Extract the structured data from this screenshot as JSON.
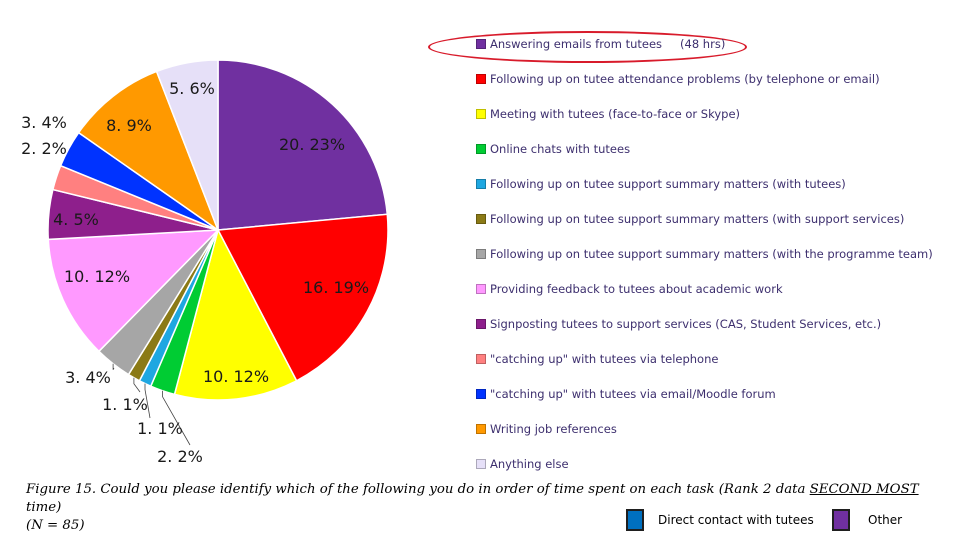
{
  "chart_data": {
    "type": "pie",
    "slices": [
      {
        "label": "Answering emails from tutees",
        "count": 20,
        "percent": 23,
        "data_label": "20. 23%",
        "color": "#7030a0"
      },
      {
        "label": "Following up on tutee attendance problems (by telephone or email)",
        "count": 16,
        "percent": 19,
        "data_label": "16. 19%",
        "color": "#ff0000"
      },
      {
        "label": "Meeting with tutees (face-to-face or Skype)",
        "count": 10,
        "percent": 12,
        "data_label": "10. 12%",
        "color": "#ffff00"
      },
      {
        "label": "Online chats with tutees",
        "count": 2,
        "percent": 2,
        "data_label": "2. 2%",
        "color": "#00cc33"
      },
      {
        "label": "Following up on tutee support summary matters (with tutees)",
        "count": 1,
        "percent": 1,
        "data_label": "1. 1%",
        "color": "#1ea7e1"
      },
      {
        "label": "Following up on tutee support summary matters (with support services)",
        "count": 1,
        "percent": 1,
        "data_label": "1. 1%",
        "color": "#8b7a16"
      },
      {
        "label": "Following up on tutee support summary matters (with the programme team)",
        "count": 3,
        "percent": 4,
        "data_label": "3. 4%",
        "color": "#a6a6a6"
      },
      {
        "label": "Providing feedback to tutees about academic work",
        "count": 10,
        "percent": 12,
        "data_label": "10. 12%",
        "color": "#ff99ff"
      },
      {
        "label": "Signposting tutees to support services (CAS, Student Services, etc.)",
        "count": 4,
        "percent": 5,
        "data_label": "4. 5%",
        "color": "#8e1f8c"
      },
      {
        "label": "\"catching up\" with tutees via telephone",
        "count": 2,
        "percent": 2,
        "data_label": "2. 2%",
        "color": "#ff8080"
      },
      {
        "label": "\"catching up\" with tutees via email/Moodle forum",
        "count": 3,
        "percent": 4,
        "data_label": "3. 4%",
        "color": "#0033ff"
      },
      {
        "label": "Writing job references",
        "count": 8,
        "percent": 9,
        "data_label": "8. 9%",
        "color": "#ff9900"
      },
      {
        "label": "Anything else",
        "count": 5,
        "percent": 6,
        "data_label": "5. 6%",
        "color": "#e6e0f8"
      }
    ],
    "annotation": "(48 hrs)",
    "legend_position": "right"
  },
  "caption": {
    "main": "Figure 15. Could you please identify which of the following you do in order of time spent on each task (Rank 2 data ",
    "emphasis": "SECOND MOST ",
    "tail": "time)",
    "n": "(N = 85)"
  },
  "key": {
    "direct": {
      "label": "Direct contact with tutees",
      "color": "#0070c0"
    },
    "other": {
      "label": "Other",
      "color": "#7030a0"
    }
  }
}
